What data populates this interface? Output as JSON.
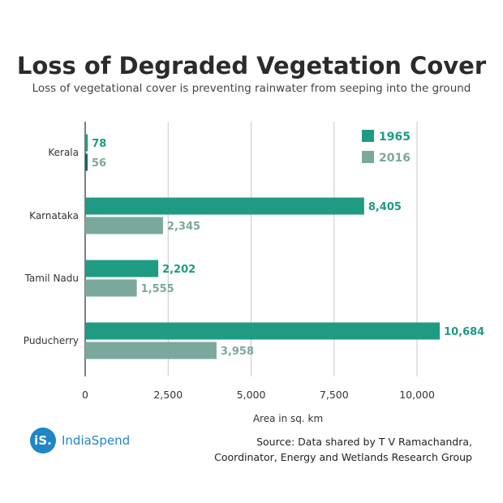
{
  "title": "Loss of Degraded Vegetation Cover",
  "subtitle": "Loss of vegetational cover is preventing rainwater from seeping into the ground",
  "source_lines": [
    "Source: Data shared by T V Ramachandra,",
    "Coordinator, Energy and Wetlands Research Group"
  ],
  "logo": {
    "mark": "iS.",
    "name": "IndiaSpend"
  },
  "colors": {
    "1965": "#1f9a83",
    "2016": "#7aa89c",
    "kerala_2016": "#1a5f7a",
    "grid": "#c9c9c9",
    "axis": "#555555"
  },
  "chart_data": {
    "type": "bar",
    "orientation": "horizontal",
    "categories": [
      "Kerala",
      "Karnataka",
      "Tamil Nadu",
      "Puducherry"
    ],
    "series": [
      {
        "name": "1965",
        "values": [
          78,
          8405,
          2202,
          10684
        ]
      },
      {
        "name": "2016",
        "values": [
          56,
          2345,
          1555,
          3958
        ]
      }
    ],
    "value_labels": {
      "1965": [
        "78",
        "8,405",
        "2,202",
        "10,684"
      ],
      "2016": [
        "56",
        "2,345",
        "1,555",
        "3,958"
      ]
    },
    "xlabel": "Area in sq. km",
    "xlim": [
      0,
      11000
    ],
    "xticks": [
      0,
      2500,
      5000,
      7500,
      10000
    ],
    "xtick_labels": [
      "0",
      "2,500",
      "5,000",
      "7,500",
      "10,000"
    ],
    "grid": "vertical",
    "legend_position": "top-right"
  }
}
